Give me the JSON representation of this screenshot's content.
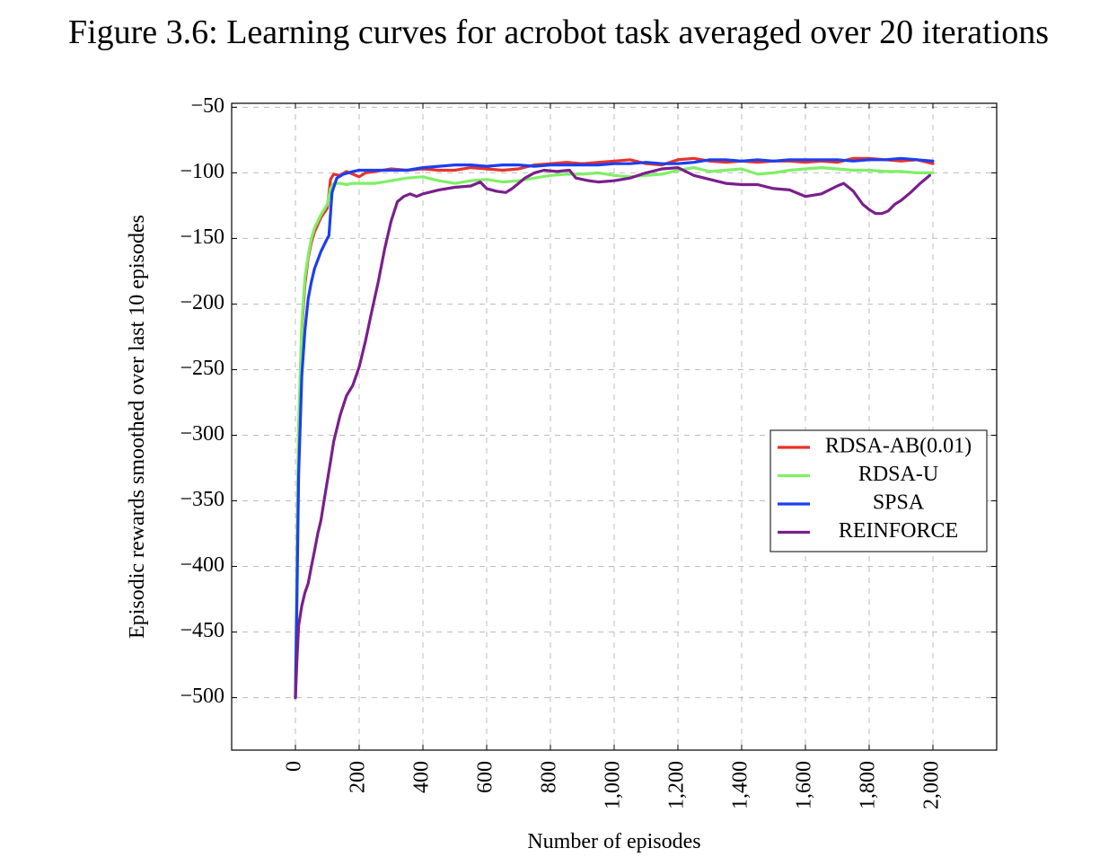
{
  "caption": "Figure 3.6: Learning curves for acrobot task averaged over 20 iterations",
  "chart_data": {
    "type": "line",
    "title": "Figure 3.6: Learning curves for acrobot task averaged over 20 iterations",
    "xlabel": "Number of episodes",
    "ylabel": "Episodic rewards smoothed over last 10 episodes",
    "xlim": [
      -200,
      2200
    ],
    "ylim": [
      -540,
      -47
    ],
    "x_ticks": [
      0,
      200,
      400,
      600,
      800,
      1000,
      1200,
      1400,
      1600,
      1800,
      2000
    ],
    "x_tick_labels": [
      "0",
      "200",
      "400",
      "600",
      "800",
      "1,000",
      "1,200",
      "1,400",
      "1,600",
      "1,800",
      "2,000"
    ],
    "y_ticks": [
      -50,
      -100,
      -150,
      -200,
      -250,
      -300,
      -350,
      -400,
      -450,
      -500
    ],
    "y_tick_labels": [
      "−50",
      "−100",
      "−150",
      "−200",
      "−250",
      "−300",
      "−350",
      "−400",
      "−450",
      "−500"
    ],
    "grid": true,
    "legend_position": "right",
    "series": [
      {
        "name": "RDSA-AB(0.01)",
        "color": "#e8332a",
        "x": [
          0,
          5,
          10,
          20,
          30,
          40,
          50,
          60,
          80,
          100,
          110,
          120,
          140,
          160,
          180,
          200,
          220,
          250,
          300,
          350,
          400,
          450,
          500,
          550,
          600,
          650,
          700,
          750,
          800,
          850,
          900,
          950,
          1000,
          1050,
          1100,
          1150,
          1200,
          1250,
          1300,
          1350,
          1400,
          1450,
          1500,
          1550,
          1600,
          1650,
          1700,
          1750,
          1800,
          1850,
          1900,
          1950,
          2000
        ],
        "y": [
          -500,
          -400,
          -300,
          -220,
          -185,
          -165,
          -153,
          -145,
          -134,
          -127,
          -105,
          -101,
          -102,
          -99,
          -101,
          -103,
          -100,
          -99,
          -97,
          -98,
          -97,
          -98,
          -98,
          -96,
          -97,
          -98,
          -97,
          -94,
          -93,
          -92,
          -93,
          -92,
          -91,
          -90,
          -93,
          -94,
          -90,
          -89,
          -91,
          -92,
          -91,
          -92,
          -91,
          -91,
          -92,
          -91,
          -92,
          -89,
          -89,
          -90,
          -91,
          -90,
          -93
        ]
      },
      {
        "name": "RDSA-U",
        "color": "#7ef064",
        "x": [
          0,
          5,
          10,
          20,
          30,
          40,
          50,
          60,
          80,
          100,
          110,
          120,
          140,
          160,
          180,
          200,
          250,
          300,
          350,
          400,
          450,
          500,
          550,
          600,
          650,
          700,
          750,
          800,
          850,
          900,
          950,
          1000,
          1050,
          1100,
          1150,
          1200,
          1250,
          1300,
          1350,
          1400,
          1450,
          1500,
          1550,
          1600,
          1650,
          1700,
          1750,
          1800,
          1850,
          1900,
          1950,
          2000
        ],
        "y": [
          -500,
          -380,
          -290,
          -215,
          -180,
          -163,
          -150,
          -142,
          -132,
          -124,
          -112,
          -108,
          -108,
          -109,
          -108,
          -108,
          -108,
          -106,
          -104,
          -103,
          -106,
          -108,
          -106,
          -105,
          -107,
          -106,
          -104,
          -102,
          -101,
          -101,
          -100,
          -102,
          -103,
          -102,
          -101,
          -98,
          -96,
          -99,
          -98,
          -97,
          -101,
          -100,
          -98,
          -97,
          -96,
          -97,
          -98,
          -98,
          -99,
          -99,
          -100,
          -100
        ]
      },
      {
        "name": "SPSA",
        "color": "#1b3ff0",
        "x": [
          0,
          5,
          10,
          20,
          30,
          40,
          50,
          60,
          80,
          100,
          105,
          115,
          130,
          150,
          180,
          200,
          250,
          300,
          350,
          400,
          450,
          500,
          550,
          600,
          650,
          700,
          750,
          800,
          850,
          900,
          950,
          1000,
          1050,
          1100,
          1150,
          1200,
          1250,
          1300,
          1350,
          1400,
          1450,
          1500,
          1550,
          1600,
          1650,
          1700,
          1750,
          1800,
          1850,
          1900,
          1950,
          2000
        ],
        "y": [
          -500,
          -420,
          -330,
          -255,
          -220,
          -196,
          -183,
          -173,
          -160,
          -150,
          -148,
          -115,
          -104,
          -101,
          -99,
          -98,
          -98,
          -98,
          -98,
          -96,
          -95,
          -94,
          -94,
          -95,
          -94,
          -94,
          -95,
          -94,
          -94,
          -94,
          -94,
          -93,
          -93,
          -92,
          -93,
          -93,
          -92,
          -90,
          -90,
          -91,
          -90,
          -91,
          -90,
          -90,
          -90,
          -90,
          -91,
          -90,
          -90,
          -89,
          -90,
          -91
        ]
      },
      {
        "name": "REINFORCE",
        "color": "#7a1f8c",
        "x": [
          0,
          5,
          10,
          20,
          30,
          40,
          50,
          60,
          70,
          80,
          90,
          100,
          110,
          120,
          140,
          160,
          180,
          200,
          220,
          240,
          260,
          280,
          300,
          320,
          340,
          360,
          380,
          400,
          450,
          500,
          550,
          580,
          600,
          630,
          660,
          680,
          700,
          720,
          750,
          780,
          820,
          860,
          880,
          920,
          950,
          1000,
          1050,
          1100,
          1150,
          1200,
          1250,
          1300,
          1350,
          1400,
          1450,
          1500,
          1550,
          1600,
          1650,
          1700,
          1720,
          1750,
          1780,
          1800,
          1820,
          1840,
          1860,
          1880,
          1900,
          1930,
          1960,
          1990
        ],
        "y": [
          -500,
          -470,
          -445,
          -430,
          -420,
          -413,
          -400,
          -388,
          -375,
          -365,
          -350,
          -335,
          -320,
          -305,
          -285,
          -270,
          -262,
          -248,
          -228,
          -205,
          -183,
          -158,
          -137,
          -122,
          -118,
          -116,
          -118,
          -116,
          -113,
          -111,
          -110,
          -107,
          -112,
          -114,
          -115,
          -112,
          -108,
          -104,
          -100,
          -98,
          -99,
          -98,
          -104,
          -106,
          -107,
          -106,
          -104,
          -100,
          -97,
          -96,
          -102,
          -105,
          -108,
          -109,
          -109,
          -112,
          -113,
          -118,
          -116,
          -110,
          -108,
          -114,
          -124,
          -128,
          -131,
          -131,
          -129,
          -124,
          -121,
          -115,
          -108,
          -102
        ]
      }
    ]
  }
}
